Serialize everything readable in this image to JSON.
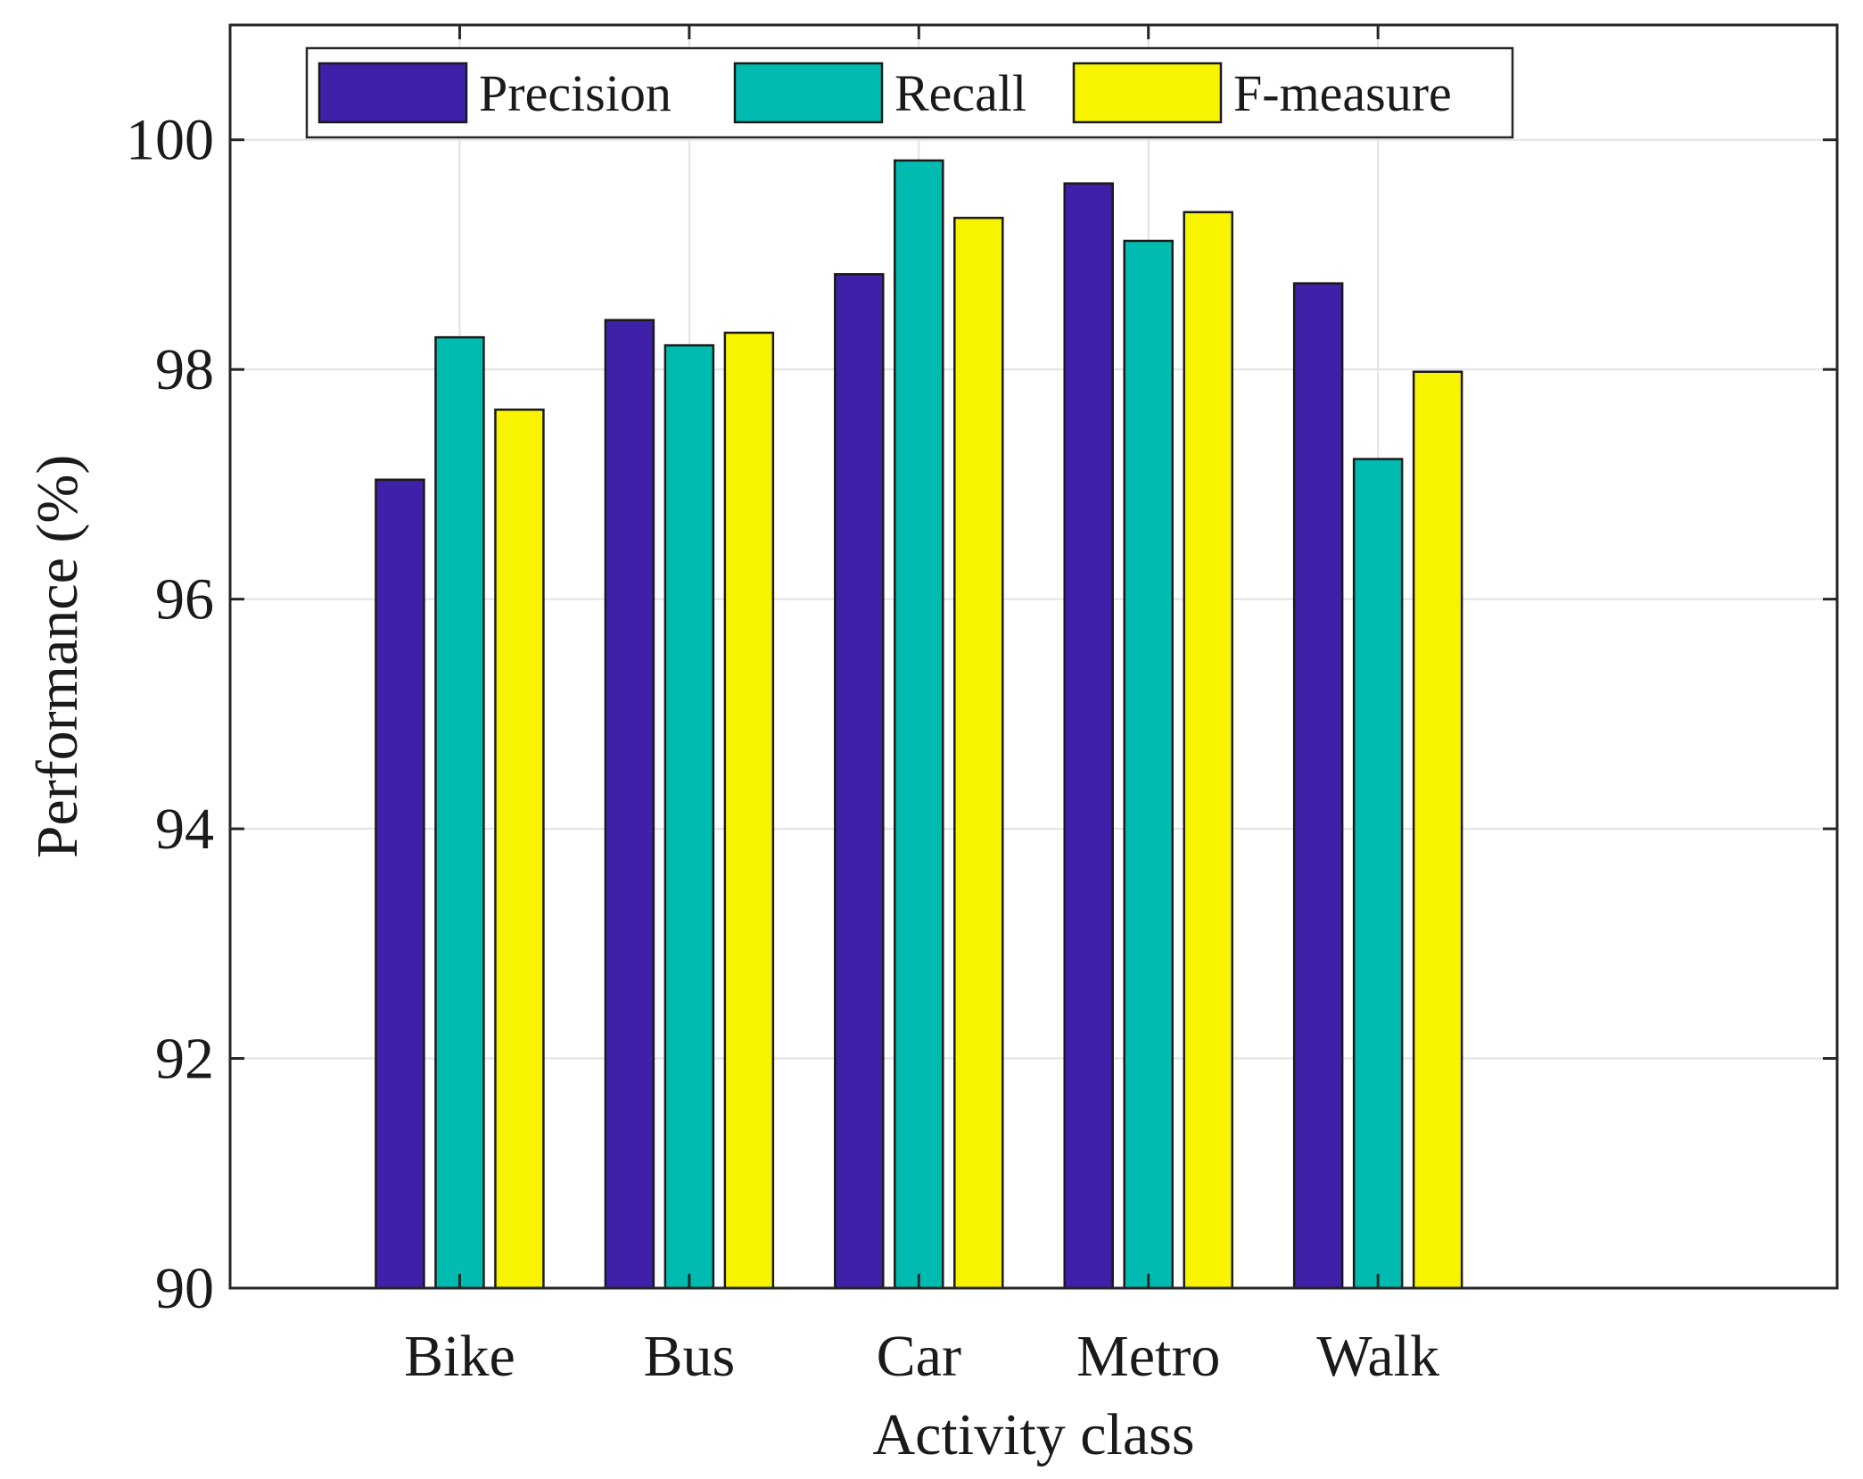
{
  "chart_data": {
    "type": "bar",
    "title": "",
    "xlabel": "Activity class",
    "ylabel": "Performance (%)",
    "categories": [
      "Bike",
      "Bus",
      "Car",
      "Metro",
      "Walk"
    ],
    "series": [
      {
        "name": "Precision",
        "color": "#3f20a8",
        "values": [
          97.04,
          98.43,
          98.83,
          99.62,
          98.75
        ]
      },
      {
        "name": "Recall",
        "color": "#00bcb0",
        "values": [
          98.28,
          98.21,
          99.82,
          99.12,
          97.22
        ]
      },
      {
        "name": "F-measure",
        "color": "#f8f400",
        "values": [
          97.65,
          98.32,
          99.32,
          99.37,
          97.98
        ]
      }
    ],
    "ylim": [
      90,
      101
    ],
    "yticks": [
      "90",
      "92",
      "94",
      "96",
      "98",
      "100"
    ],
    "grid": true,
    "legend_position": "top-left"
  }
}
